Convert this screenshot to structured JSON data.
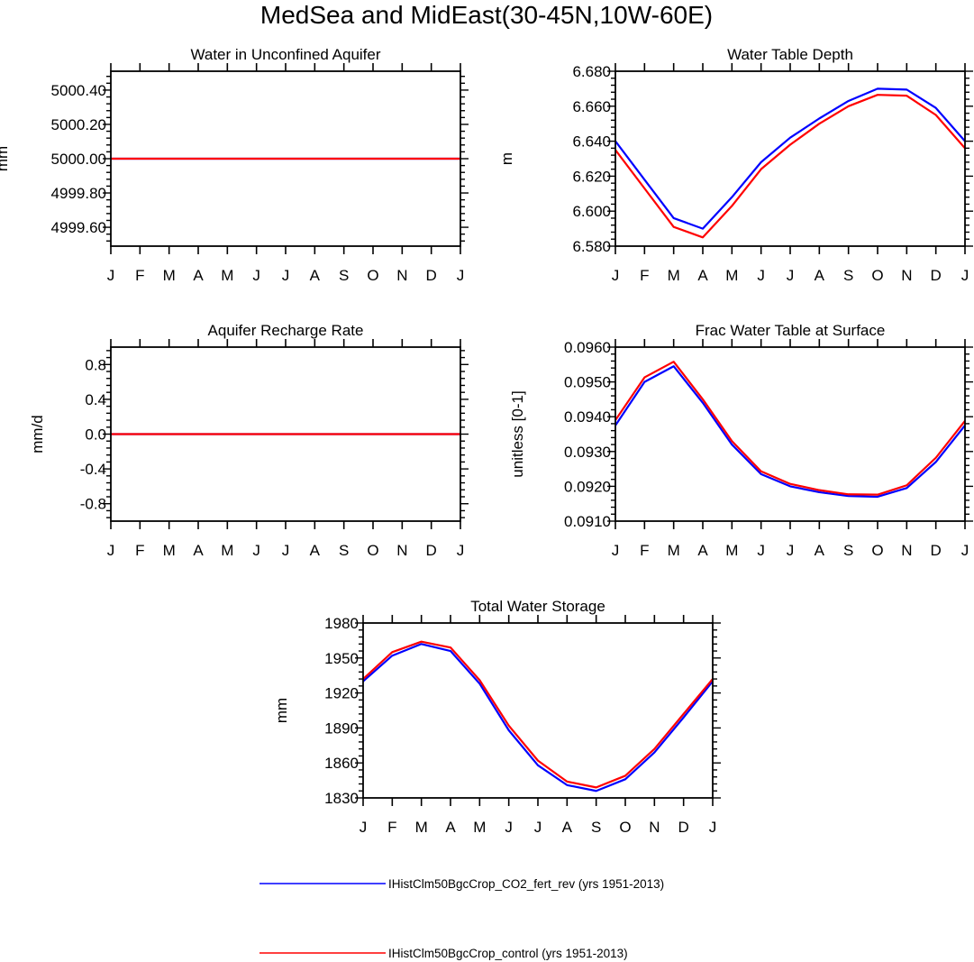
{
  "title": "MedSea and MidEast(30-45N,10W-60E)",
  "colors": {
    "series_1": "#0000ff",
    "series_2": "#ff0000",
    "axes": "#000000"
  },
  "legend": [
    {
      "label": "IHistClm50BgcCrop_CO2_fert_rev (yrs 1951-2013)",
      "color": "#0000ff"
    },
    {
      "label": "IHistClm50BgcCrop_control (yrs 1951-2013)",
      "color": "#ff0000"
    }
  ],
  "chart_data": [
    {
      "type": "line",
      "title": "Water in Unconfined Aquifer",
      "ylabel": "mm",
      "xlabel": "",
      "categories": [
        "J",
        "F",
        "M",
        "A",
        "M",
        "J",
        "J",
        "A",
        "S",
        "O",
        "N",
        "D",
        "J"
      ],
      "ylim": [
        4999.49,
        5000.51
      ],
      "yticks": [
        4999.6,
        4999.8,
        5000.0,
        5000.2,
        5000.4
      ],
      "ytick_labels": [
        "4999.60",
        "4999.80",
        "5000.00",
        "5000.20",
        "5000.40"
      ],
      "series": [
        {
          "name": "IHistClm50BgcCrop_CO2_fert_rev (yrs 1951-2013)",
          "values": [
            5000,
            5000,
            5000,
            5000,
            5000,
            5000,
            5000,
            5000,
            5000,
            5000,
            5000,
            5000,
            5000
          ]
        },
        {
          "name": "IHistClm50BgcCrop_control (yrs 1951-2013)",
          "values": [
            5000,
            5000,
            5000,
            5000,
            5000,
            5000,
            5000,
            5000,
            5000,
            5000,
            5000,
            5000,
            5000
          ]
        }
      ]
    },
    {
      "type": "line",
      "title": "Water Table Depth",
      "ylabel": "m",
      "xlabel": "",
      "categories": [
        "J",
        "F",
        "M",
        "A",
        "M",
        "J",
        "J",
        "A",
        "S",
        "O",
        "N",
        "D",
        "J"
      ],
      "ylim": [
        6.58,
        6.68
      ],
      "yticks": [
        6.58,
        6.6,
        6.62,
        6.64,
        6.66,
        6.68
      ],
      "ytick_labels": [
        "6.580",
        "6.600",
        "6.620",
        "6.640",
        "6.660",
        "6.680"
      ],
      "series": [
        {
          "name": "IHistClm50BgcCrop_CO2_fert_rev (yrs 1951-2013)",
          "values": [
            6.64,
            6.618,
            6.596,
            6.59,
            6.608,
            6.628,
            6.642,
            6.653,
            6.663,
            6.67,
            6.6695,
            6.659,
            6.64
          ]
        },
        {
          "name": "IHistClm50BgcCrop_control (yrs 1951-2013)",
          "values": [
            6.635,
            6.613,
            6.591,
            6.585,
            6.603,
            6.624,
            6.638,
            6.65,
            6.66,
            6.6665,
            6.666,
            6.655,
            6.636
          ]
        }
      ]
    },
    {
      "type": "line",
      "title": "Aquifer Recharge Rate",
      "ylabel": "mm/d",
      "xlabel": "",
      "categories": [
        "J",
        "F",
        "M",
        "A",
        "M",
        "J",
        "J",
        "A",
        "S",
        "O",
        "N",
        "D",
        "J"
      ],
      "ylim": [
        -1.0,
        1.0
      ],
      "yticks": [
        -0.8,
        -0.4,
        0.0,
        0.4,
        0.8
      ],
      "ytick_labels": [
        "-0.8",
        "-0.4",
        "0.0",
        "0.4",
        "0.8"
      ],
      "series": [
        {
          "name": "IHistClm50BgcCrop_CO2_fert_rev (yrs 1951-2013)",
          "values": [
            0,
            0,
            0,
            0,
            0,
            0,
            0,
            0,
            0,
            0,
            0,
            0,
            0
          ]
        },
        {
          "name": "IHistClm50BgcCrop_control (yrs 1951-2013)",
          "values": [
            0,
            0,
            0,
            0,
            0,
            0,
            0,
            0,
            0,
            0,
            0,
            0,
            0
          ]
        }
      ]
    },
    {
      "type": "line",
      "title": "Frac Water Table at Surface",
      "ylabel": "unitless [0-1]",
      "xlabel": "",
      "categories": [
        "J",
        "F",
        "M",
        "A",
        "M",
        "J",
        "J",
        "A",
        "S",
        "O",
        "N",
        "D",
        "J"
      ],
      "ylim": [
        0.091,
        0.096
      ],
      "yticks": [
        0.091,
        0.092,
        0.093,
        0.094,
        0.095,
        0.096
      ],
      "ytick_labels": [
        "0.0910",
        "0.0920",
        "0.0930",
        "0.0940",
        "0.0950",
        "0.0960"
      ],
      "series": [
        {
          "name": "IHistClm50BgcCrop_CO2_fert_rev (yrs 1951-2013)",
          "values": [
            0.09375,
            0.095,
            0.09545,
            0.0944,
            0.0932,
            0.09235,
            0.092,
            0.09183,
            0.09172,
            0.0917,
            0.09195,
            0.0927,
            0.09375
          ]
        },
        {
          "name": "IHistClm50BgcCrop_control (yrs 1951-2013)",
          "values": [
            0.0939,
            0.09513,
            0.09558,
            0.0945,
            0.0933,
            0.09243,
            0.09207,
            0.09189,
            0.09177,
            0.09176,
            0.09203,
            0.09282,
            0.09388
          ]
        }
      ]
    },
    {
      "type": "line",
      "title": "Total Water Storage",
      "ylabel": "mm",
      "xlabel": "",
      "categories": [
        "J",
        "F",
        "M",
        "A",
        "M",
        "J",
        "J",
        "A",
        "S",
        "O",
        "N",
        "D",
        "J"
      ],
      "ylim": [
        1830,
        1980
      ],
      "yticks": [
        1830,
        1860,
        1890,
        1920,
        1950,
        1980
      ],
      "ytick_labels": [
        "1830",
        "1860",
        "1890",
        "1920",
        "1950",
        "1980"
      ],
      "series": [
        {
          "name": "IHistClm50BgcCrop_CO2_fert_rev (yrs 1951-2013)",
          "values": [
            1930,
            1952,
            1962,
            1956,
            1928,
            1888,
            1858,
            1841,
            1836,
            1846,
            1869,
            1899,
            1930
          ]
        },
        {
          "name": "IHistClm50BgcCrop_control (yrs 1951-2013)",
          "values": [
            1932,
            1955,
            1964,
            1959,
            1931,
            1892,
            1862,
            1844,
            1839,
            1849,
            1872,
            1902,
            1932
          ]
        }
      ]
    }
  ]
}
